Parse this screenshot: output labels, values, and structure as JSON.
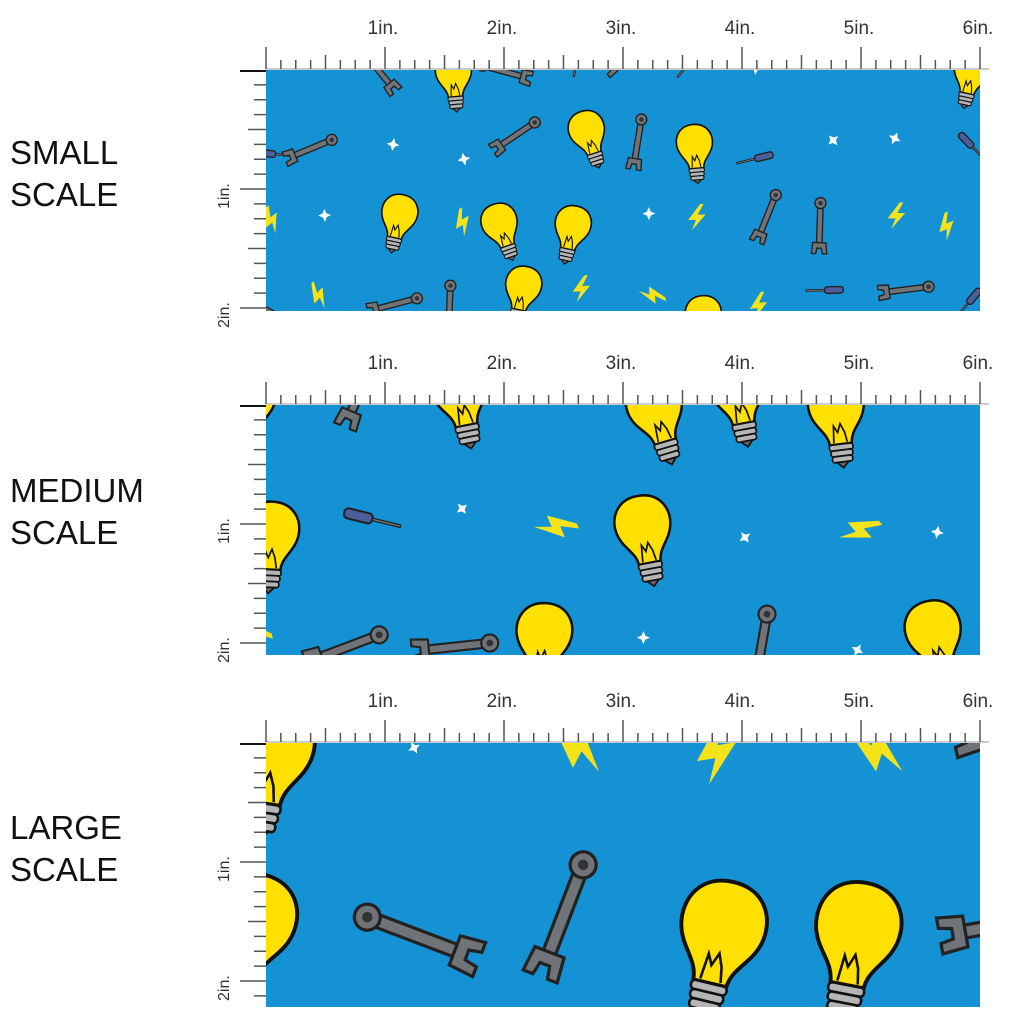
{
  "panels": [
    {
      "label_line1": "SMALL",
      "label_line2": "SCALE",
      "motif_scale": 0.55
    },
    {
      "label_line1": "MEDIUM",
      "label_line2": "SCALE",
      "motif_scale": 0.85
    },
    {
      "label_line1": "LARGE",
      "label_line2": "SCALE",
      "motif_scale": 1.3
    }
  ],
  "ruler": {
    "horizontal_labels": [
      "1in.",
      "2in.",
      "3in.",
      "4in.",
      "5in.",
      "6in."
    ],
    "vertical_labels": [
      "1in.",
      "2in."
    ]
  },
  "colors": {
    "fabric": "#1592d4",
    "bulb": "#ffe000",
    "wrench": "#707478",
    "screwdriver": "#4a5f9c",
    "bolt": "#f5e31a",
    "star": "#ffffff"
  },
  "motifs": [
    "lightbulb-icon",
    "wrench-icon",
    "screwdriver-icon",
    "lightning-bolt-icon",
    "star-icon"
  ]
}
